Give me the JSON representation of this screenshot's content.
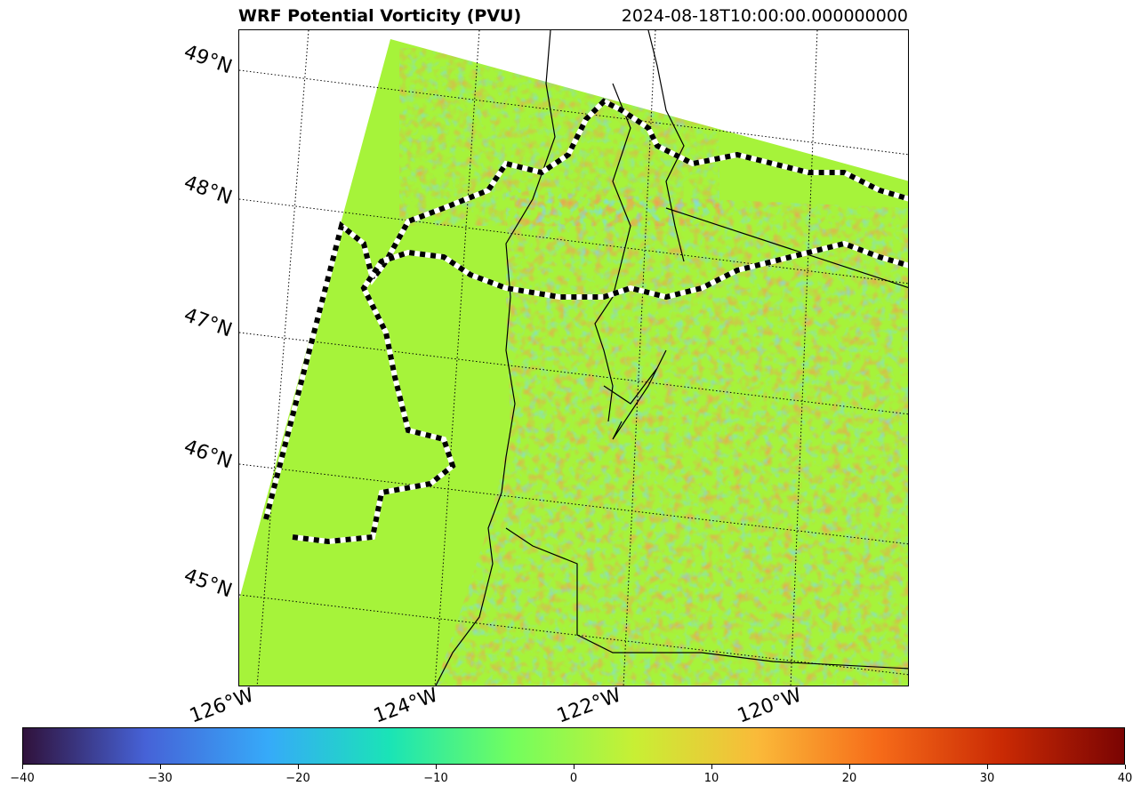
{
  "title": {
    "left": "WRF Potential Vorticity (PVU)",
    "right": "2024-08-18T10:00:00.000000000"
  },
  "map": {
    "lat_labels": [
      "49°N",
      "48°N",
      "47°N",
      "46°N",
      "45°N"
    ],
    "lon_labels": [
      "126°W",
      "124°W",
      "122°W",
      "120°W"
    ],
    "field_colors": {
      "zero": "#a6f33a",
      "background": "#ffffff",
      "coast_line": "#000000",
      "dashed_contour_dark": "#000000",
      "dashed_contour_light": "#ffffff"
    }
  },
  "colorbar": {
    "min": -40,
    "max": 40,
    "ticks": [
      "−40",
      "−30",
      "−20",
      "−10",
      "0",
      "10",
      "20",
      "30",
      "40"
    ],
    "tick_values": [
      -40,
      -30,
      -20,
      -10,
      0,
      10,
      20,
      30,
      40
    ],
    "colormap": "turbo",
    "stops": [
      "#30123b",
      "#4662d7",
      "#36aaf9",
      "#1ae4b6",
      "#72fe5e",
      "#c8ef34",
      "#faba39",
      "#f66b19",
      "#ca2a04",
      "#7a0403"
    ]
  }
}
